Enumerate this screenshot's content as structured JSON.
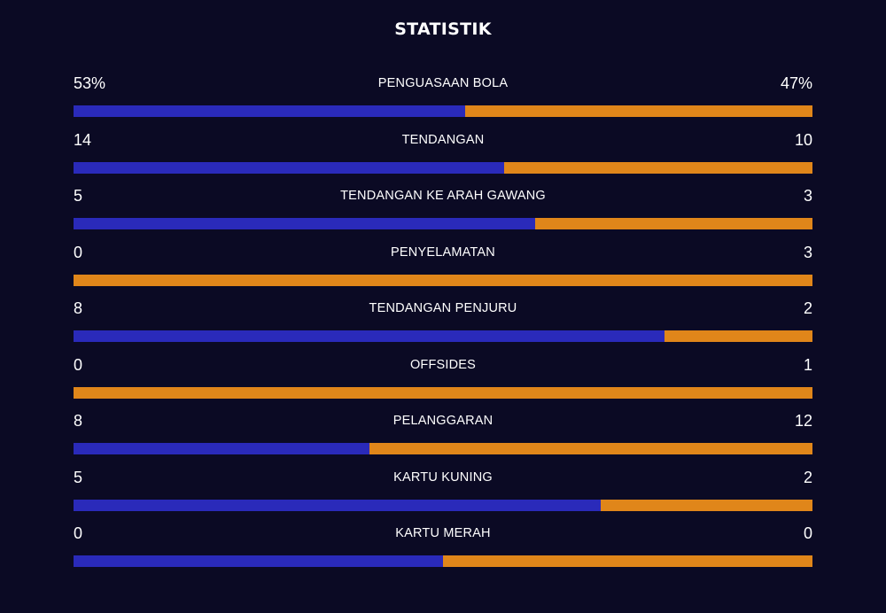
{
  "title": "STATISTIK",
  "colors": {
    "background": "#0b0a24",
    "home_bar": "#2a2aba",
    "away_bar": "#e0861a",
    "text": "#ffffff"
  },
  "stats": [
    {
      "label": "PENGUASAAN BOLA",
      "home": "53%",
      "away": "47%",
      "home_share": 0.53
    },
    {
      "label": "TENDANGAN",
      "home": "14",
      "away": "10",
      "home_share": 0.583
    },
    {
      "label": "TENDANGAN KE ARAH GAWANG",
      "home": "5",
      "away": "3",
      "home_share": 0.625
    },
    {
      "label": "PENYELAMATAN",
      "home": "0",
      "away": "3",
      "home_share": 0.0
    },
    {
      "label": "TENDANGAN PENJURU",
      "home": "8",
      "away": "2",
      "home_share": 0.8
    },
    {
      "label": "OFFSIDES",
      "home": "0",
      "away": "1",
      "home_share": 0.0
    },
    {
      "label": "PELANGGARAN",
      "home": "8",
      "away": "12",
      "home_share": 0.4
    },
    {
      "label": "KARTU KUNING",
      "home": "5",
      "away": "2",
      "home_share": 0.714
    },
    {
      "label": "KARTU MERAH",
      "home": "0",
      "away": "0",
      "home_share": 0.5
    }
  ]
}
